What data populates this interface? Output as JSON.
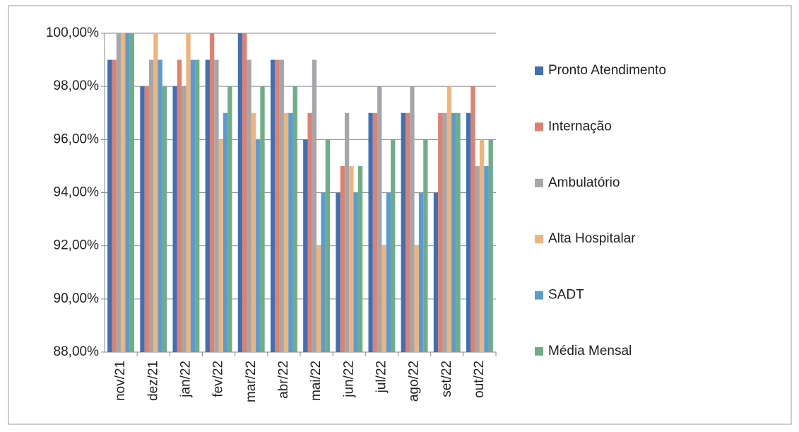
{
  "chart_data": {
    "type": "bar",
    "categories": [
      "nov/21",
      "dez/21",
      "jan/22",
      "fev/22",
      "mar/22",
      "abr/22",
      "mai/22",
      "jun/22",
      "jul/22",
      "ago/22",
      "set/22",
      "out/22"
    ],
    "series": [
      {
        "name": "Pronto Atendimento",
        "color": "#3f6fb5",
        "values": [
          99,
          98,
          98,
          99,
          100,
          99,
          96,
          94,
          97,
          97,
          94,
          97
        ]
      },
      {
        "name": "Internação",
        "color": "#e0806e",
        "values": [
          99,
          98,
          99,
          100,
          100,
          99,
          97,
          95,
          97,
          97,
          97,
          98
        ]
      },
      {
        "name": "Ambulatório",
        "color": "#a3a7ab",
        "values": [
          100,
          99,
          98,
          99,
          99,
          99,
          99,
          97,
          98,
          98,
          97,
          95
        ]
      },
      {
        "name": "Alta Hospitalar",
        "color": "#efb47a",
        "values": [
          100,
          100,
          100,
          96,
          97,
          97,
          92,
          95,
          92,
          92,
          98,
          96
        ]
      },
      {
        "name": "SADT",
        "color": "#5b9bd5",
        "values": [
          100,
          99,
          99,
          97,
          96,
          97,
          94,
          94,
          94,
          94,
          97,
          95
        ]
      },
      {
        "name": "Média Mensal",
        "color": "#6fae85",
        "values": [
          100,
          98,
          99,
          98,
          98,
          98,
          96,
          95,
          96,
          96,
          97,
          96
        ]
      }
    ],
    "ylim": [
      88,
      100
    ],
    "yticks": [
      {
        "value": 88,
        "label": "88,00%"
      },
      {
        "value": 90,
        "label": "90,00%"
      },
      {
        "value": 92,
        "label": "92,00%"
      },
      {
        "value": 94,
        "label": "94,00%"
      },
      {
        "value": 96,
        "label": "96,00%"
      },
      {
        "value": 98,
        "label": "98,00%"
      },
      {
        "value": 100,
        "label": "100,00%"
      }
    ],
    "grid": true,
    "legend": "right"
  }
}
